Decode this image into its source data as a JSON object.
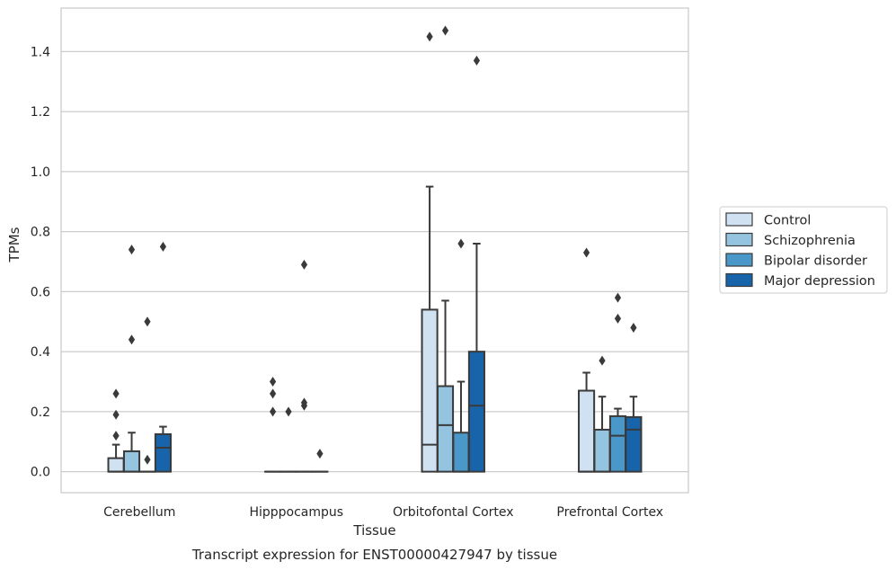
{
  "chart_data": {
    "type": "box",
    "title": "Transcript expression for ENST00000427947 by tissue",
    "xlabel": "Tissue",
    "ylabel": "TPMs",
    "ylim": [
      -0.07,
      1.545
    ],
    "yticks": [
      0.0,
      0.2,
      0.4,
      0.6,
      0.8,
      1.0,
      1.2,
      1.4
    ],
    "ytick_labels": [
      "0.0",
      "0.2",
      "0.4",
      "0.6",
      "0.8",
      "1.0",
      "1.2",
      "1.4"
    ],
    "grid": "horizontal",
    "legend_position": "right",
    "categories": [
      "Cerebellum",
      "Hipppocampus",
      "Orbitofontal Cortex",
      "Prefrontal Cortex"
    ],
    "series": [
      {
        "name": "Control",
        "color": "#d0e1f2",
        "boxes": [
          {
            "min": 0.0,
            "q1": 0.0,
            "median": 0.0,
            "q3": 0.045,
            "max": 0.09,
            "outliers": [
              0.12,
              0.19,
              0.26
            ]
          },
          {
            "min": 0.0,
            "q1": 0.0,
            "median": 0.0,
            "q3": 0.0,
            "max": 0.0,
            "outliers": [
              0.2,
              0.26,
              0.3
            ]
          },
          {
            "min": 0.0,
            "q1": 0.0,
            "median": 0.09,
            "q3": 0.54,
            "max": 0.95,
            "outliers": [
              1.45
            ]
          },
          {
            "min": 0.0,
            "q1": 0.0,
            "median": 0.0,
            "q3": 0.27,
            "max": 0.33,
            "outliers": [
              0.73
            ]
          }
        ]
      },
      {
        "name": "Schizophrenia",
        "color": "#94c4df",
        "boxes": [
          {
            "min": 0.0,
            "q1": 0.0,
            "median": 0.0,
            "q3": 0.068,
            "max": 0.13,
            "outliers": [
              0.44,
              0.74
            ]
          },
          {
            "min": 0.0,
            "q1": 0.0,
            "median": 0.0,
            "q3": 0.0,
            "max": 0.0,
            "outliers": [
              0.2
            ]
          },
          {
            "min": 0.0,
            "q1": 0.0,
            "median": 0.155,
            "q3": 0.285,
            "max": 0.57,
            "outliers": [
              1.47
            ]
          },
          {
            "min": 0.0,
            "q1": 0.0,
            "median": 0.0,
            "q3": 0.14,
            "max": 0.25,
            "outliers": [
              0.37
            ]
          }
        ]
      },
      {
        "name": "Bipolar disorder",
        "color": "#4a98c9",
        "boxes": [
          {
            "min": 0.0,
            "q1": 0.0,
            "median": 0.0,
            "q3": 0.0,
            "max": 0.0,
            "outliers": [
              0.04,
              0.5
            ]
          },
          {
            "min": 0.0,
            "q1": 0.0,
            "median": 0.0,
            "q3": 0.0,
            "max": 0.0,
            "outliers": [
              0.22,
              0.23,
              0.69
            ]
          },
          {
            "min": 0.0,
            "q1": 0.0,
            "median": 0.0,
            "q3": 0.13,
            "max": 0.3,
            "outliers": [
              0.76
            ]
          },
          {
            "min": 0.0,
            "q1": 0.0,
            "median": 0.12,
            "q3": 0.185,
            "max": 0.21,
            "outliers": [
              0.51,
              0.58
            ]
          }
        ]
      },
      {
        "name": "Major depression",
        "color": "#1764ab",
        "boxes": [
          {
            "min": 0.0,
            "q1": 0.0,
            "median": 0.08,
            "q3": 0.125,
            "max": 0.15,
            "outliers": [
              0.75
            ]
          },
          {
            "min": 0.0,
            "q1": 0.0,
            "median": 0.0,
            "q3": 0.0,
            "max": 0.0,
            "outliers": [
              0.06
            ]
          },
          {
            "min": 0.0,
            "q1": 0.0,
            "median": 0.22,
            "q3": 0.4,
            "max": 0.76,
            "outliers": [
              1.37
            ]
          },
          {
            "min": 0.0,
            "q1": 0.0,
            "median": 0.14,
            "q3": 0.182,
            "max": 0.25,
            "outliers": [
              0.48
            ]
          }
        ]
      }
    ]
  }
}
